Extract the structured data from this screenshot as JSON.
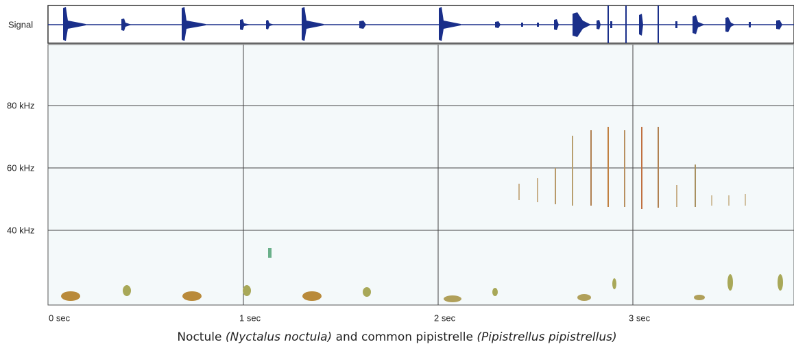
{
  "signal_label": "Signal",
  "y_labels": [
    "80 kHz",
    "60 kHz",
    "40 kHz"
  ],
  "x_labels": [
    "0 sec",
    "1 sec",
    "2 sec",
    "3 sec"
  ],
  "caption": [
    "Noctule ",
    "(Nyctalus noctula)",
    " and common pipistrelle ",
    "(Pipistrellus pipistrellus)"
  ]
}
